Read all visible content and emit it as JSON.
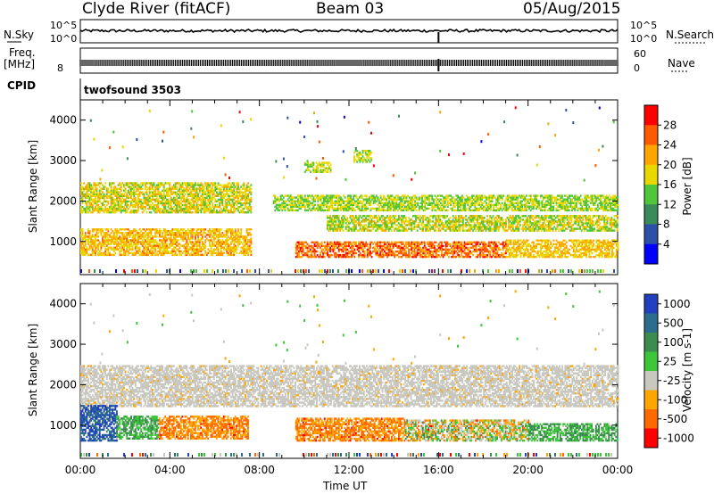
{
  "header": {
    "station": "Clyde River (fitACF)",
    "beam": "Beam 03",
    "date": "05/Aug/2015"
  },
  "strip": {
    "nsky_label": "N.Sky",
    "nsky_ticks": [
      "10^5",
      "10^0"
    ],
    "nsearch_label": "N.Search",
    "nsearch_ticks": [
      "10^5",
      "10^0"
    ],
    "freq_label": "Freq.",
    "freq_unit": "[MHz]",
    "freq_ticks": [
      "8"
    ],
    "nave_label": "Nave",
    "nave_ticks": [
      "60",
      "0"
    ],
    "cpid_label": "CPID",
    "cpid_value": "twofsound 3503"
  },
  "colors": {
    "power": [
      "#0000ff",
      "#2c4fa8",
      "#3a8a5a",
      "#52c63a",
      "#e8d800",
      "#ffa500",
      "#ff5a00",
      "#ff0000"
    ],
    "velocity": [
      "#2040c0",
      "#2c6c8c",
      "#3c8c50",
      "#3cc63a",
      "#c8c8c0",
      "#ffa500",
      "#ff6a00",
      "#ff0000"
    ]
  },
  "chart_data": [
    {
      "type": "heatmap",
      "name": "power",
      "ylabel": "Slant Range [km]",
      "yticks": [
        "4000",
        "3000",
        "2000",
        "1000"
      ],
      "ylim": [
        180,
        4500
      ],
      "colorbar_label": "Power [dB]",
      "colorbar_ticks": [
        "28",
        "24",
        "20",
        "16",
        "12",
        "8",
        "4"
      ],
      "colorbar_range": [
        0,
        32
      ],
      "xlim": [
        0,
        24
      ],
      "bands": [
        {
          "t0": 0.0,
          "t1": 7.6,
          "r0": 1700,
          "r1": 2450,
          "v0": 14,
          "v1": 22
        },
        {
          "t0": 0.0,
          "t1": 7.6,
          "r0": 650,
          "r1": 1300,
          "v0": 16,
          "v1": 25
        },
        {
          "t0": 8.6,
          "t1": 24.0,
          "r0": 1750,
          "r1": 2150,
          "v0": 12,
          "v1": 20
        },
        {
          "t0": 11.0,
          "t1": 24.0,
          "r0": 1250,
          "r1": 1650,
          "v0": 12,
          "v1": 22
        },
        {
          "t0": 9.6,
          "t1": 19.0,
          "r0": 600,
          "r1": 1000,
          "v0": 20,
          "v1": 30
        },
        {
          "t0": 19.0,
          "t1": 24.0,
          "r0": 600,
          "r1": 1050,
          "v0": 16,
          "v1": 24
        },
        {
          "t0": 10.0,
          "t1": 11.2,
          "r0": 2700,
          "r1": 2950,
          "v0": 14,
          "v1": 20
        },
        {
          "t0": 12.2,
          "t1": 13.0,
          "r0": 2950,
          "r1": 3250,
          "v0": 14,
          "v1": 20
        }
      ]
    },
    {
      "type": "heatmap",
      "name": "velocity",
      "ylabel": "Slant Range [km]",
      "yticks": [
        "4000",
        "3000",
        "2000",
        "1000"
      ],
      "ylim": [
        180,
        4500
      ],
      "xlabel": "Time UT",
      "xticks": [
        "00:00",
        "04:00",
        "08:00",
        "12:00",
        "16:00",
        "20:00",
        "00:00"
      ],
      "colorbar_label": "Velocity [m s-1]",
      "colorbar_ticks": [
        "1000",
        "500",
        "100",
        "25",
        "-25",
        "-100",
        "-500",
        "-1000"
      ],
      "xlim": [
        0,
        24
      ],
      "bands": [
        {
          "t0": 0.0,
          "t1": 24.0,
          "r0": 1450,
          "r1": 2450,
          "v0": 4,
          "v1": 4
        },
        {
          "t0": 0.0,
          "t1": 1.6,
          "r0": 600,
          "r1": 1500,
          "v0": 0,
          "v1": 1
        },
        {
          "t0": 1.6,
          "t1": 3.5,
          "r0": 650,
          "r1": 1200,
          "v0": 2,
          "v1": 3
        },
        {
          "t0": 3.5,
          "t1": 7.5,
          "r0": 650,
          "r1": 1200,
          "v0": 5,
          "v1": 6
        },
        {
          "t0": 9.6,
          "t1": 14.5,
          "r0": 600,
          "r1": 1150,
          "v0": 5,
          "v1": 6
        },
        {
          "t0": 14.5,
          "t1": 20.0,
          "r0": 600,
          "r1": 1100,
          "v0": 2,
          "v1": 6
        },
        {
          "t0": 20.0,
          "t1": 24.0,
          "r0": 600,
          "r1": 1050,
          "v0": 2,
          "v1": 3
        }
      ]
    }
  ]
}
